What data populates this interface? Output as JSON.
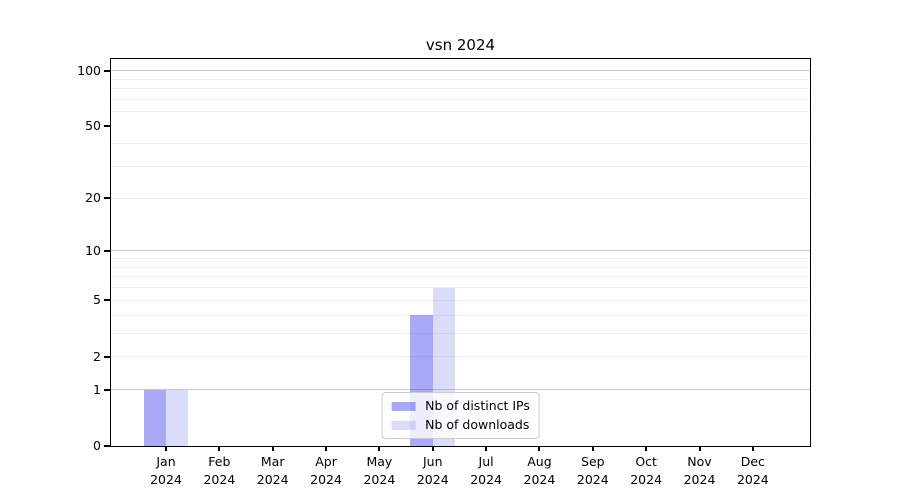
{
  "chart_data": {
    "type": "bar",
    "title": "vsn 2024",
    "x_axis": {
      "months": [
        "Jan",
        "Feb",
        "Mar",
        "Apr",
        "May",
        "Jun",
        "Jul",
        "Aug",
        "Sep",
        "Oct",
        "Nov",
        "Dec"
      ],
      "year": "2024"
    },
    "y_axis": {
      "scale": "log10(1+y)",
      "tick_labels": [
        "0",
        "1",
        "2",
        "5",
        "10",
        "20",
        "50",
        "100"
      ],
      "tick_values": [
        0,
        1,
        2,
        5,
        10,
        20,
        50,
        100
      ],
      "decade_gridlines": [
        1,
        10,
        100
      ],
      "light_gridlines": [
        2,
        3,
        4,
        5,
        6,
        7,
        8,
        9,
        20,
        30,
        40,
        60,
        70,
        80,
        90
      ],
      "top_value": 115
    },
    "series": [
      {
        "name": "Nb of distinct IPs",
        "color": "#a9a9f7",
        "fill_rgba": "rgba(40,40,235,0.4)",
        "values": [
          1,
          0,
          0,
          0,
          0,
          4,
          0,
          0,
          0,
          0,
          0,
          0
        ]
      },
      {
        "name": "Nb of downloads",
        "color": "#dbdbfa",
        "fill_rgba": "rgba(111,111,235,0.25)",
        "values": [
          1,
          0,
          0,
          0,
          0,
          6,
          0,
          0,
          0,
          0,
          0,
          0
        ]
      }
    ],
    "legend": {
      "entries": [
        "Nb of distinct IPs",
        "Nb of downloads"
      ],
      "position": "lower center"
    },
    "colors": {
      "decade_grid": "#c8c8c8",
      "light_grid": "#efefef",
      "axis": "#000000",
      "background": "#ffffff"
    }
  }
}
